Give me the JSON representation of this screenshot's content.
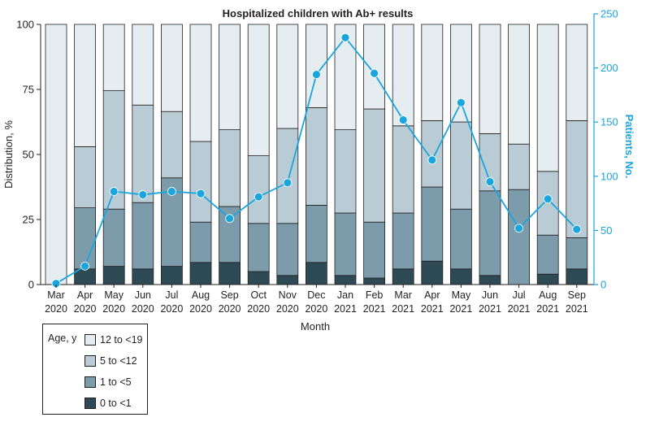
{
  "chart_data": {
    "type": "bar",
    "title": "Hospitalized children with Ab+ results",
    "xlabel": "Month",
    "ylabel": "Distribution, %",
    "y2label": "Patients, No.",
    "ylim": [
      0,
      100
    ],
    "y2lim": [
      0,
      250
    ],
    "yticks": [
      0,
      25,
      50,
      75,
      100
    ],
    "y2ticks": [
      0,
      50,
      100,
      150,
      200,
      250
    ],
    "categories": [
      [
        "Mar",
        "2020"
      ],
      [
        "Apr",
        "2020"
      ],
      [
        "May",
        "2020"
      ],
      [
        "Jun",
        "2020"
      ],
      [
        "Jul",
        "2020"
      ],
      [
        "Aug",
        "2020"
      ],
      [
        "Sep",
        "2020"
      ],
      [
        "Oct",
        "2020"
      ],
      [
        "Nov",
        "2020"
      ],
      [
        "Dec",
        "2020"
      ],
      [
        "Jan",
        "2021"
      ],
      [
        "Feb",
        "2021"
      ],
      [
        "Mar",
        "2021"
      ],
      [
        "Apr",
        "2021"
      ],
      [
        "May",
        "2021"
      ],
      [
        "Jun",
        "2021"
      ],
      [
        "Jul",
        "2021"
      ],
      [
        "Aug",
        "2021"
      ],
      [
        "Sep",
        "2021"
      ]
    ],
    "stacked": true,
    "series": [
      {
        "name": "0 to <1",
        "color": "#2e4a55",
        "values": [
          0,
          6,
          7,
          6,
          7,
          8.5,
          8.5,
          5,
          3.5,
          8.5,
          3.5,
          2.5,
          6,
          9,
          6,
          3.5,
          0,
          4,
          6
        ]
      },
      {
        "name": "1 to <5",
        "color": "#7c9cab",
        "values": [
          0,
          23.5,
          22,
          25.5,
          34,
          15.5,
          21.5,
          18.5,
          20,
          22,
          24,
          21.5,
          21.5,
          28.5,
          23,
          32.5,
          36.5,
          15,
          12
        ]
      },
      {
        "name": "5 to <12",
        "color": "#b9cbd4",
        "values": [
          0,
          23.5,
          45.5,
          37.5,
          25.5,
          31,
          29.5,
          26,
          36.5,
          37.5,
          32,
          43.5,
          33.5,
          25.5,
          33.5,
          22,
          17.5,
          24.5,
          45
        ]
      },
      {
        "name": "12 to <19",
        "color": "#e6edf0",
        "values": [
          100,
          47,
          25.5,
          31,
          33.5,
          45,
          40.5,
          50.5,
          40,
          32,
          40.5,
          32.5,
          39,
          37,
          37.5,
          42,
          46,
          56.5,
          37
        ]
      }
    ],
    "line": {
      "name": "Patients, No.",
      "axis": "right",
      "color": "#1aa5dd",
      "values": [
        1,
        17,
        86,
        83,
        86,
        84,
        61,
        81,
        94,
        194,
        228,
        195,
        152,
        115,
        168,
        95,
        52,
        79,
        51
      ]
    },
    "legend": {
      "title": "Age, y",
      "placement": "bottom-left",
      "order": [
        "12 to <19",
        "5 to <12",
        "1 to <5",
        "0 to <1"
      ]
    }
  }
}
